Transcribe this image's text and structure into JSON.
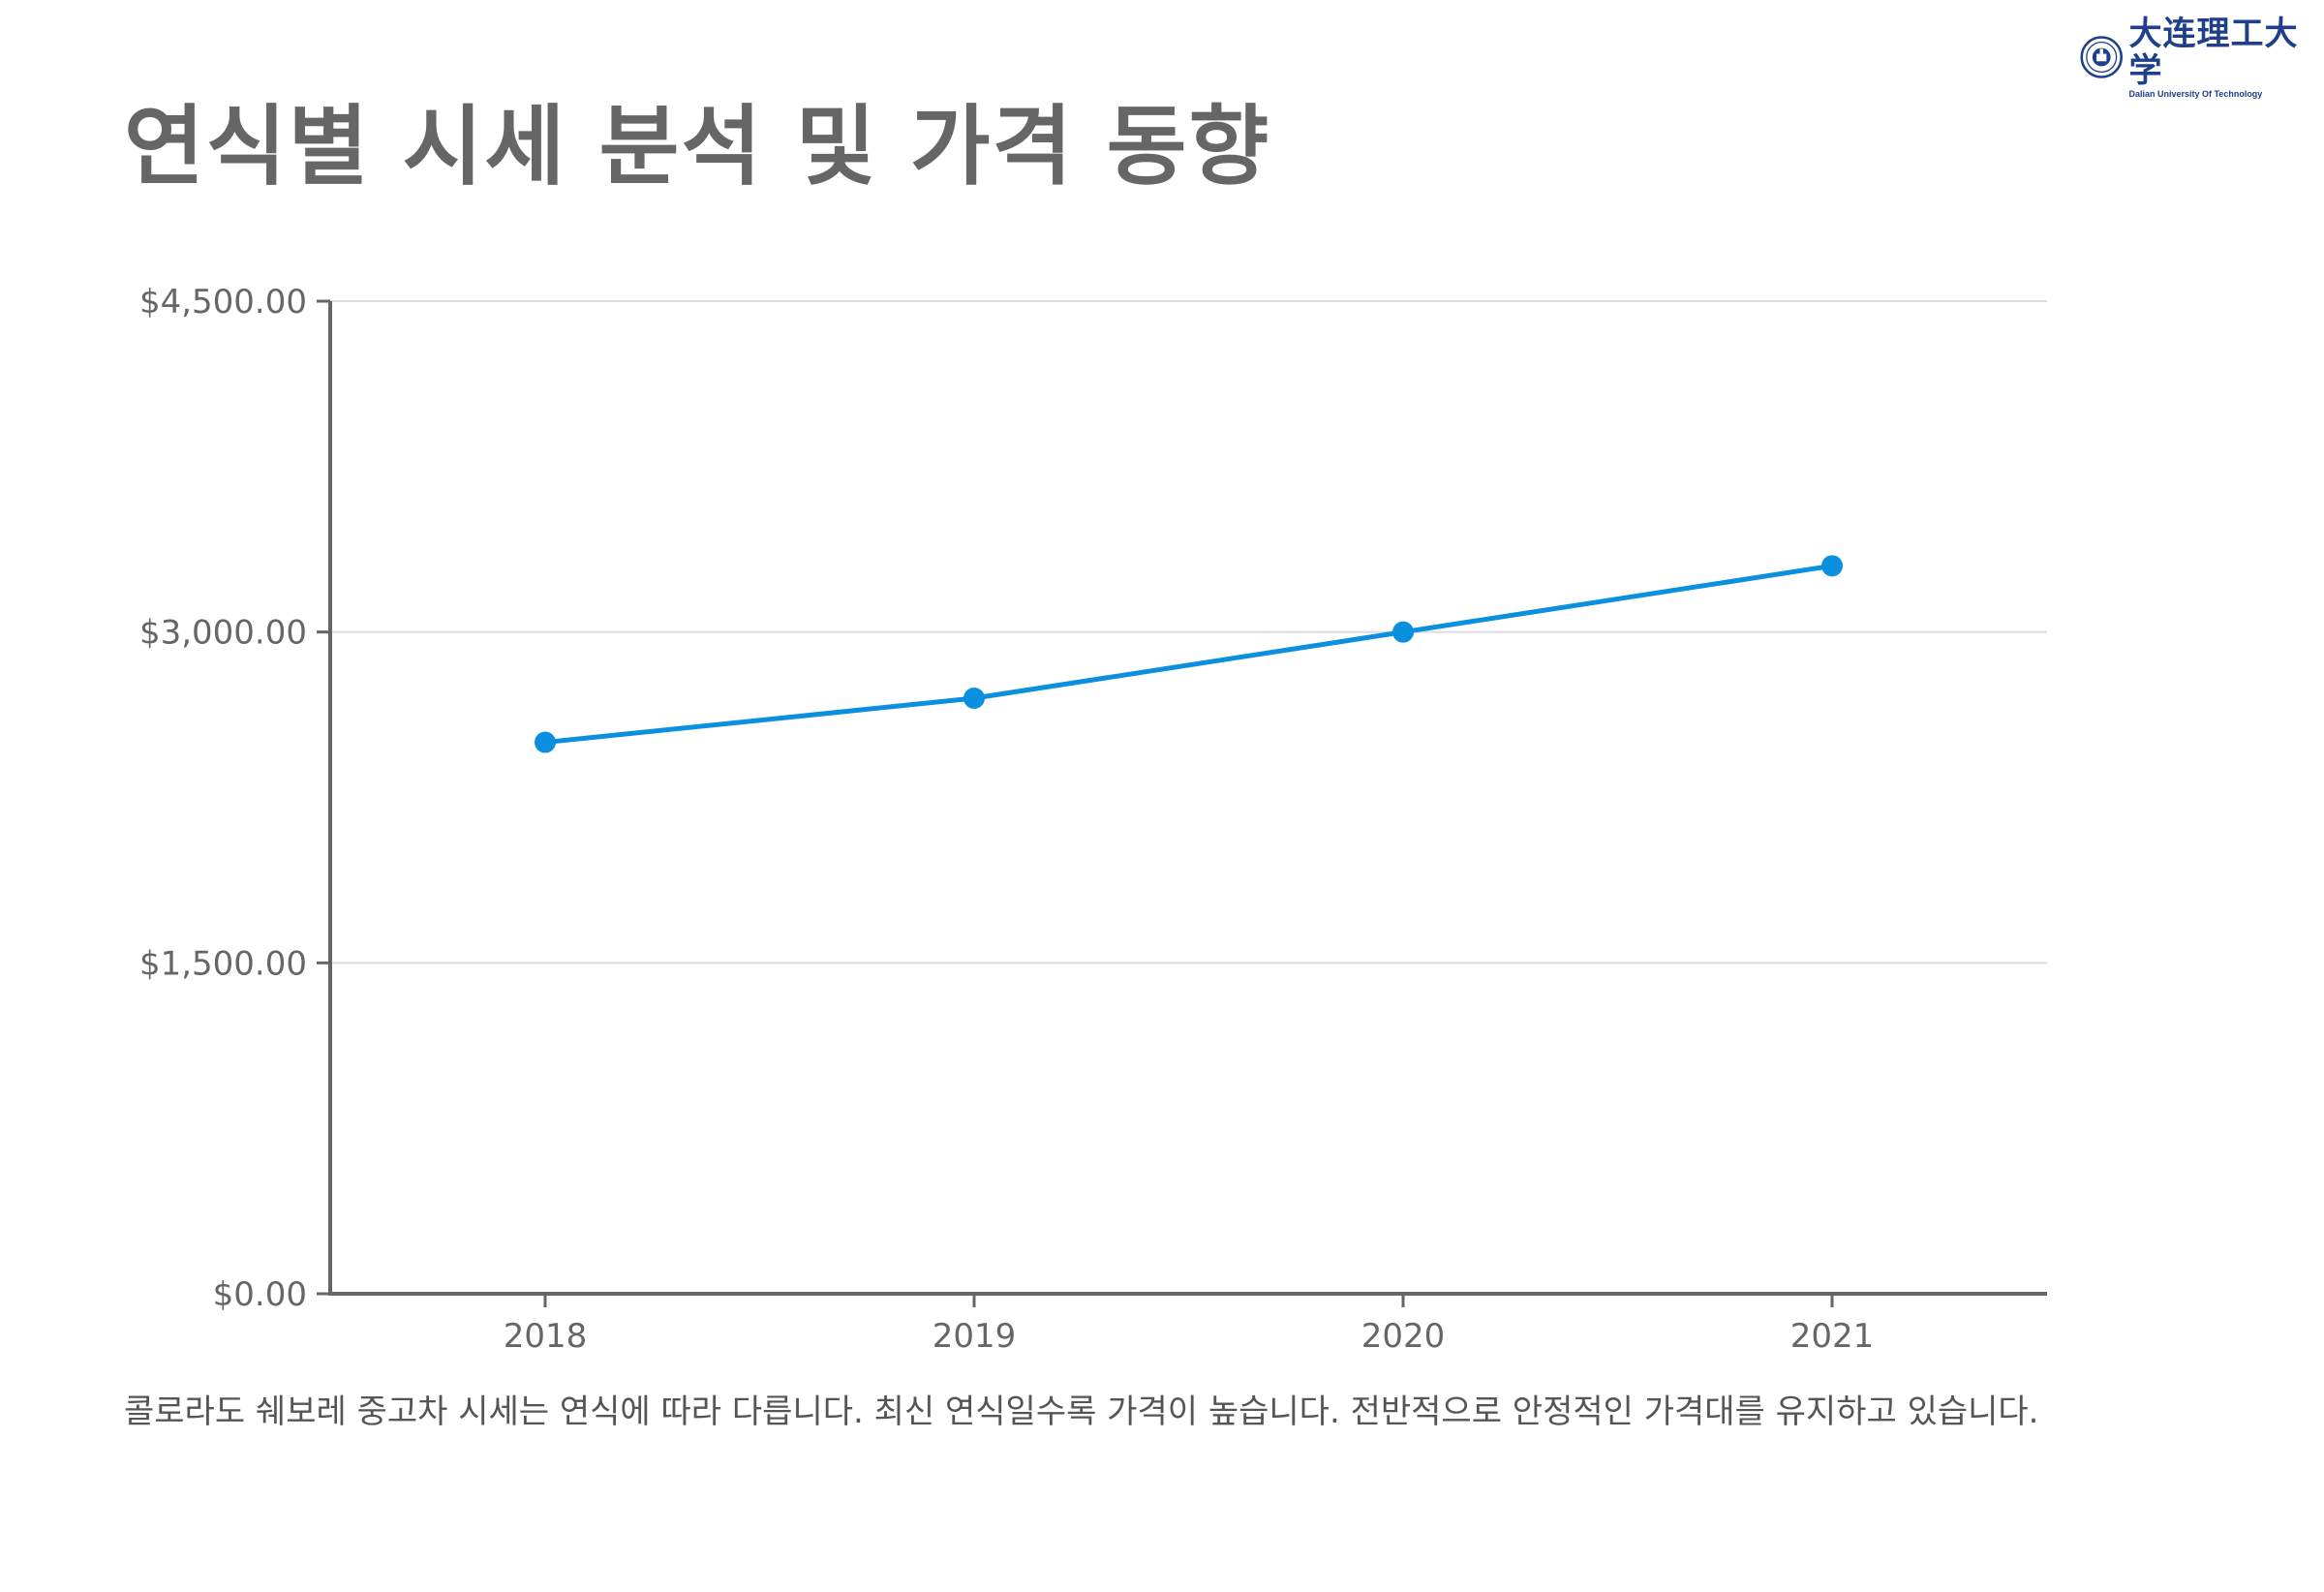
{
  "header": {
    "title": "연식별 시세 분석 및 가격 동향",
    "logo": {
      "name": "大连理工大学",
      "subtitle": "Dalian University Of Technology",
      "icon": "university-seal-icon"
    }
  },
  "chart_data": {
    "type": "line",
    "categories": [
      "2018",
      "2019",
      "2020",
      "2021"
    ],
    "series": [
      {
        "values": [
          2500,
          2700,
          3000,
          3300
        ]
      }
    ],
    "ylim": [
      0,
      4500
    ],
    "yticks": [
      0,
      1500,
      3000,
      4500
    ],
    "ytick_labels": [
      "$0.00",
      "$1,500.00",
      "$3,000.00",
      "$4,500.00"
    ],
    "grid": true,
    "line_color": "#0b8fdf",
    "axis_color": "#666666",
    "grid_color": "#dddddd"
  },
  "description": "콜로라도 쉐보레 중고차 시세는 연식에 따라 다릅니다. 최신 연식일수록 가격이 높습니다. 전반적으로 안정적인 가격대를 유지하고 있습니다."
}
